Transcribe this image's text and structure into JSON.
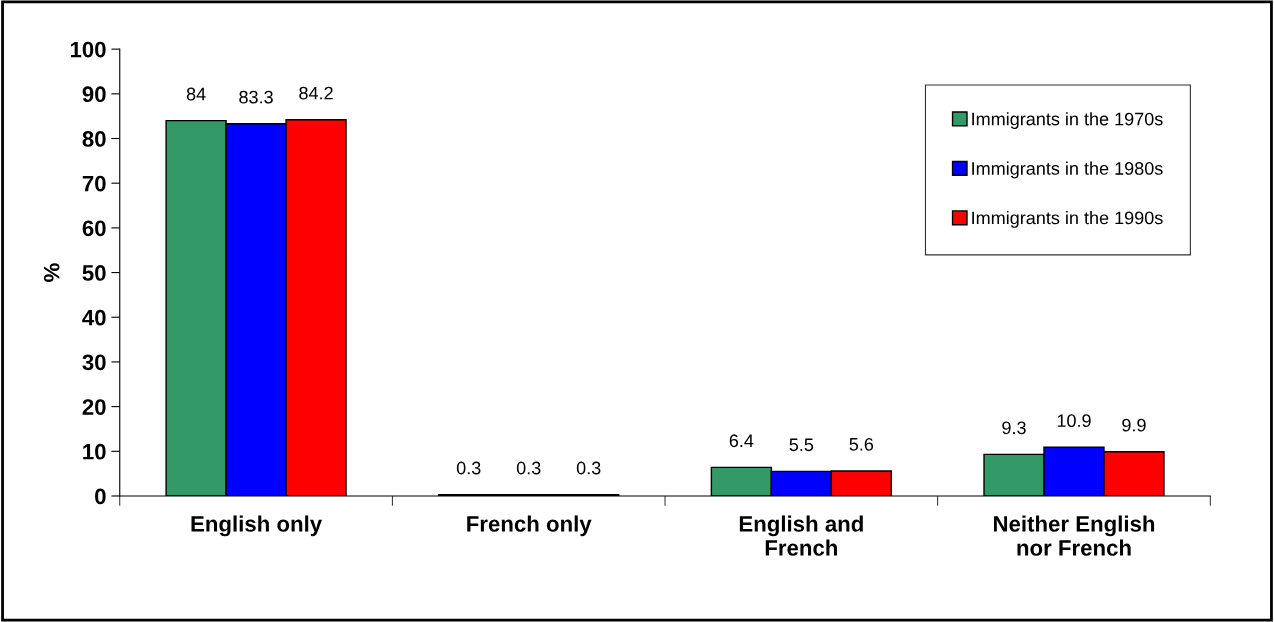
{
  "chart_data": {
    "type": "bar",
    "ylabel": "%",
    "categories": [
      "English only",
      "French only",
      "English and\nFrench",
      "Neither English\nnor French"
    ],
    "series": [
      {
        "name": "Immigrants in the 1970s",
        "color": "#339966",
        "values": [
          84,
          0.3,
          6.4,
          9.3
        ]
      },
      {
        "name": "Immigrants in the 1980s",
        "color": "#0000ff",
        "values": [
          83.3,
          0.3,
          5.5,
          10.9
        ]
      },
      {
        "name": "Immigrants in the 1990s",
        "color": "#ff0000",
        "values": [
          84.2,
          0.3,
          5.6,
          9.9
        ]
      }
    ],
    "ylim": [
      0,
      100
    ],
    "yticks": [
      0,
      10,
      20,
      30,
      40,
      50,
      60,
      70,
      80,
      90,
      100
    ],
    "data_labels": true,
    "grid": false,
    "legend": "top right"
  }
}
